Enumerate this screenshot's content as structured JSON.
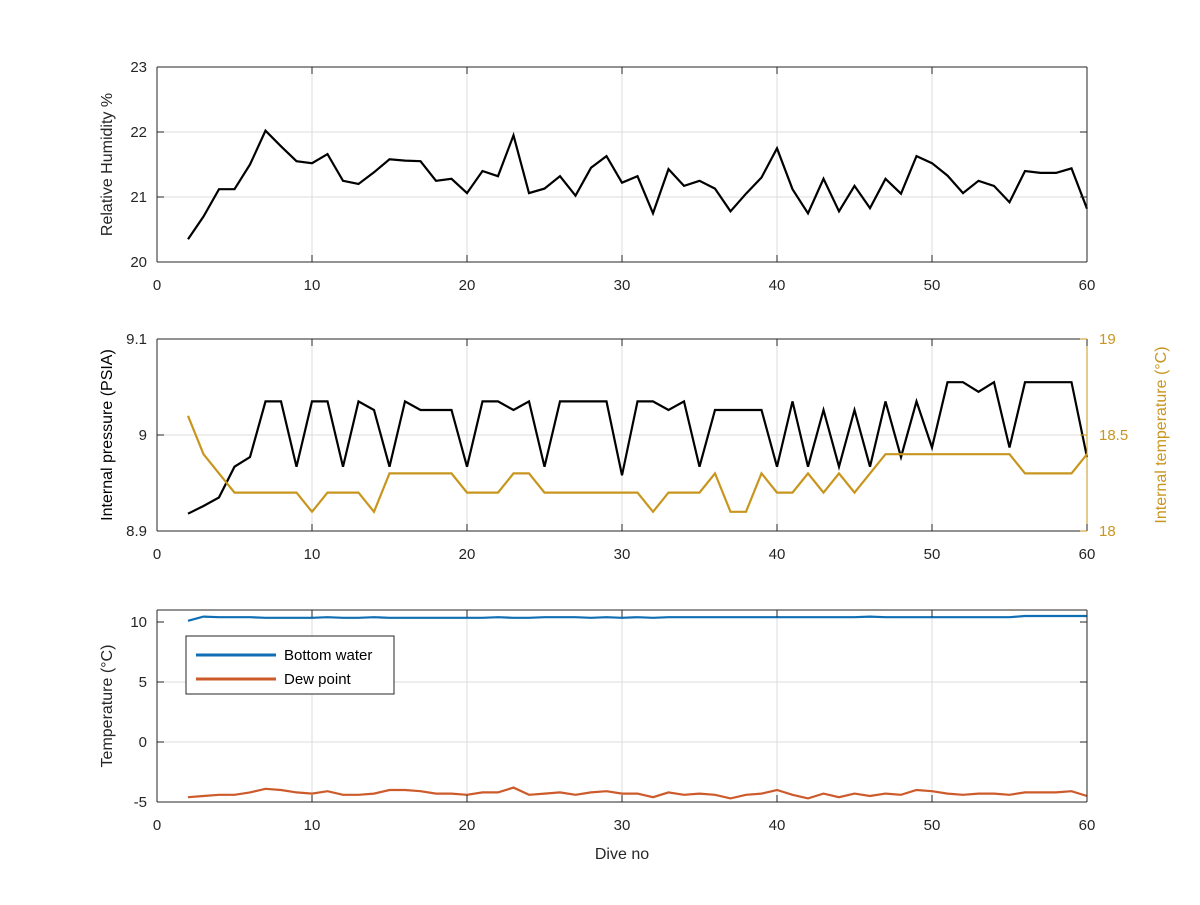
{
  "colors": {
    "black_series": "#000000",
    "temp_series": "#c8961f",
    "bottom_water": "#0f6eb4",
    "dew_point": "#cd5a2a",
    "grid": "#dcdcdc",
    "axis": "#262626",
    "tick_text": "#262626"
  },
  "chart_data": [
    {
      "type": "line",
      "ylabel": "Relative Humidity %",
      "xlabel": "",
      "xlim": [
        0,
        60
      ],
      "ylim": [
        20,
        23
      ],
      "xticks": [
        "0",
        "10",
        "20",
        "30",
        "40",
        "50",
        "60"
      ],
      "yticks": [
        "20",
        "21",
        "22",
        "23"
      ],
      "grid": true,
      "series": [
        {
          "color": "black_series",
          "x": [
            2,
            3,
            4,
            5,
            6,
            7,
            8,
            9,
            10,
            11,
            12,
            13,
            14,
            15,
            16,
            17,
            18,
            19,
            20,
            21,
            22,
            23,
            24,
            25,
            26,
            27,
            28,
            29,
            30,
            31,
            32,
            33,
            34,
            35,
            36,
            37,
            38,
            39,
            40,
            41,
            42,
            43,
            44,
            45,
            46,
            47,
            48,
            49,
            50,
            51,
            52,
            53,
            54,
            55,
            56,
            57,
            58,
            59,
            60
          ],
          "values": [
            20.35,
            20.7,
            21.12,
            21.12,
            21.5,
            22.02,
            21.78,
            21.55,
            21.52,
            21.66,
            21.25,
            21.2,
            21.38,
            21.58,
            21.56,
            21.55,
            21.25,
            21.28,
            21.06,
            21.4,
            21.32,
            21.95,
            21.06,
            21.13,
            21.32,
            21.02,
            21.45,
            21.63,
            21.22,
            21.32,
            20.75,
            21.43,
            21.17,
            21.25,
            21.13,
            20.78,
            21.05,
            21.3,
            21.75,
            21.12,
            20.75,
            21.28,
            20.78,
            21.17,
            20.83,
            21.28,
            21.05,
            21.63,
            21.52,
            21.33,
            21.06,
            21.25,
            21.17,
            20.92,
            21.4,
            21.37,
            21.37,
            21.44,
            20.82
          ]
        }
      ]
    },
    {
      "type": "line",
      "ylabel": "Internal pressure (PSIA)",
      "y2label": "Internal temperature (°C)",
      "xlabel": "",
      "xlim": [
        0,
        60
      ],
      "ylim": [
        8.9,
        9.1
      ],
      "y2lim": [
        18,
        19
      ],
      "xticks": [
        "0",
        "10",
        "20",
        "30",
        "40",
        "50",
        "60"
      ],
      "yticks": [
        "8.9",
        "9",
        "9.1"
      ],
      "y2ticks": [
        "18",
        "18.5",
        "19"
      ],
      "grid": true,
      "series": [
        {
          "axis": "left",
          "color": "black_series",
          "x": [
            2,
            3,
            4,
            5,
            6,
            7,
            8,
            9,
            10,
            11,
            12,
            13,
            14,
            15,
            16,
            17,
            18,
            19,
            20,
            21,
            22,
            23,
            24,
            25,
            26,
            27,
            28,
            29,
            30,
            31,
            32,
            33,
            34,
            35,
            36,
            37,
            38,
            39,
            40,
            41,
            42,
            43,
            44,
            45,
            46,
            47,
            48,
            49,
            50,
            51,
            52,
            53,
            54,
            55,
            56,
            57,
            58,
            59,
            60
          ],
          "values": [
            8.918,
            8.926,
            8.935,
            8.967,
            8.977,
            9.035,
            9.035,
            8.967,
            9.035,
            9.035,
            8.967,
            9.035,
            9.026,
            8.967,
            9.035,
            9.026,
            9.026,
            9.026,
            8.967,
            9.035,
            9.035,
            9.026,
            9.035,
            8.967,
            9.035,
            9.035,
            9.035,
            9.035,
            8.958,
            9.035,
            9.035,
            9.026,
            9.035,
            8.967,
            9.026,
            9.026,
            9.026,
            9.026,
            8.967,
            9.035,
            8.967,
            9.026,
            8.967,
            9.026,
            8.967,
            9.035,
            8.977,
            9.035,
            8.987,
            9.055,
            9.055,
            9.045,
            9.055,
            8.987,
            9.055,
            9.055,
            9.055,
            9.055,
            8.977
          ]
        },
        {
          "axis": "right",
          "color": "temp_series",
          "x": [
            2,
            3,
            4,
            5,
            6,
            7,
            8,
            9,
            10,
            11,
            12,
            13,
            14,
            15,
            16,
            17,
            18,
            19,
            20,
            21,
            22,
            23,
            24,
            25,
            26,
            27,
            28,
            29,
            30,
            31,
            32,
            33,
            34,
            35,
            36,
            37,
            38,
            39,
            40,
            41,
            42,
            43,
            44,
            45,
            46,
            47,
            48,
            49,
            50,
            51,
            52,
            53,
            54,
            55,
            56,
            57,
            58,
            59,
            60
          ],
          "values": [
            18.6,
            18.4,
            18.3,
            18.2,
            18.2,
            18.2,
            18.2,
            18.2,
            18.1,
            18.2,
            18.2,
            18.2,
            18.1,
            18.3,
            18.3,
            18.3,
            18.3,
            18.3,
            18.2,
            18.2,
            18.2,
            18.3,
            18.3,
            18.2,
            18.2,
            18.2,
            18.2,
            18.2,
            18.2,
            18.2,
            18.1,
            18.2,
            18.2,
            18.2,
            18.3,
            18.1,
            18.1,
            18.3,
            18.2,
            18.2,
            18.3,
            18.2,
            18.3,
            18.2,
            18.3,
            18.4,
            18.4,
            18.4,
            18.4,
            18.4,
            18.4,
            18.4,
            18.4,
            18.4,
            18.3,
            18.3,
            18.3,
            18.3,
            18.4
          ]
        }
      ]
    },
    {
      "type": "line",
      "ylabel": "Temperature (°C)",
      "xlabel": "Dive no",
      "xlim": [
        0,
        60
      ],
      "ylim": [
        -5,
        11
      ],
      "xticks": [
        "0",
        "10",
        "20",
        "30",
        "40",
        "50",
        "60"
      ],
      "yticks": [
        "-5",
        "0",
        "5",
        "10"
      ],
      "grid": true,
      "legend": "upper-left",
      "series": [
        {
          "name": "Bottom water",
          "color": "bottom_water",
          "x": [
            2,
            3,
            4,
            5,
            6,
            7,
            8,
            9,
            10,
            11,
            12,
            13,
            14,
            15,
            16,
            17,
            18,
            19,
            20,
            21,
            22,
            23,
            24,
            25,
            26,
            27,
            28,
            29,
            30,
            31,
            32,
            33,
            34,
            35,
            36,
            37,
            38,
            39,
            40,
            41,
            42,
            43,
            44,
            45,
            46,
            47,
            48,
            49,
            50,
            51,
            52,
            53,
            54,
            55,
            56,
            57,
            58,
            59,
            60
          ],
          "values": [
            10.1,
            10.45,
            10.4,
            10.4,
            10.4,
            10.35,
            10.35,
            10.35,
            10.35,
            10.4,
            10.35,
            10.35,
            10.4,
            10.35,
            10.35,
            10.35,
            10.35,
            10.35,
            10.35,
            10.35,
            10.4,
            10.35,
            10.35,
            10.4,
            10.4,
            10.4,
            10.35,
            10.4,
            10.35,
            10.4,
            10.35,
            10.4,
            10.4,
            10.4,
            10.4,
            10.4,
            10.4,
            10.4,
            10.4,
            10.4,
            10.4,
            10.4,
            10.4,
            10.4,
            10.45,
            10.4,
            10.4,
            10.4,
            10.4,
            10.4,
            10.4,
            10.4,
            10.4,
            10.4,
            10.5,
            10.5,
            10.5,
            10.5,
            10.5
          ]
        },
        {
          "name": "Dew point",
          "color": "dew_point",
          "x": [
            2,
            3,
            4,
            5,
            6,
            7,
            8,
            9,
            10,
            11,
            12,
            13,
            14,
            15,
            16,
            17,
            18,
            19,
            20,
            21,
            22,
            23,
            24,
            25,
            26,
            27,
            28,
            29,
            30,
            31,
            32,
            33,
            34,
            35,
            36,
            37,
            38,
            39,
            40,
            41,
            42,
            43,
            44,
            45,
            46,
            47,
            48,
            49,
            50,
            51,
            52,
            53,
            54,
            55,
            56,
            57,
            58,
            59,
            60
          ],
          "values": [
            -4.6,
            -4.5,
            -4.4,
            -4.4,
            -4.2,
            -3.9,
            -4.0,
            -4.2,
            -4.3,
            -4.1,
            -4.4,
            -4.4,
            -4.3,
            -4.0,
            -4.0,
            -4.1,
            -4.3,
            -4.3,
            -4.4,
            -4.2,
            -4.2,
            -3.8,
            -4.4,
            -4.3,
            -4.2,
            -4.4,
            -4.2,
            -4.1,
            -4.3,
            -4.3,
            -4.6,
            -4.2,
            -4.4,
            -4.3,
            -4.4,
            -4.7,
            -4.4,
            -4.3,
            -4.0,
            -4.4,
            -4.7,
            -4.3,
            -4.6,
            -4.3,
            -4.5,
            -4.3,
            -4.4,
            -4.0,
            -4.1,
            -4.3,
            -4.4,
            -4.3,
            -4.3,
            -4.4,
            -4.2,
            -4.2,
            -4.2,
            -4.1,
            -4.5
          ]
        }
      ]
    }
  ]
}
